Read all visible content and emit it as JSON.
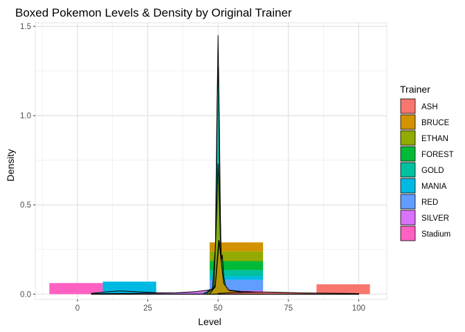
{
  "chart_data": {
    "type": "bar",
    "title": "Boxed Pokemon Levels & Density by Original Trainer",
    "xlabel": "Level",
    "ylabel": "Density",
    "xlim": [
      -15,
      110
    ],
    "ylim": [
      -0.03,
      1.52
    ],
    "x_ticks": [
      0,
      25,
      50,
      75,
      100
    ],
    "x_tick_labels": [
      "0",
      "25",
      "50",
      "75",
      "100"
    ],
    "y_ticks": [
      0.0,
      0.5,
      1.0,
      1.5
    ],
    "y_tick_labels": [
      "0.0",
      "0.5",
      "1.0",
      "1.5"
    ],
    "grid": true,
    "legend": {
      "title": "Trainer",
      "placement": "right",
      "entries": [
        {
          "name": "ASH",
          "color": "#F8766D"
        },
        {
          "name": "BRUCE",
          "color": "#D39200"
        },
        {
          "name": "ETHAN",
          "color": "#93AA00"
        },
        {
          "name": "FOREST",
          "color": "#00BA38"
        },
        {
          "name": "GOLD",
          "color": "#00C19F"
        },
        {
          "name": "MANIA",
          "color": "#00B9E3"
        },
        {
          "name": "RED",
          "color": "#619CFF"
        },
        {
          "name": "SILVER",
          "color": "#DB72FB"
        },
        {
          "name": "Stadium",
          "color": "#FF61C3"
        }
      ]
    },
    "histogram_bars": [
      {
        "trainer": "Stadium",
        "x_start": -10,
        "x_end": 9,
        "y_start": 0.0,
        "y_end": 0.062
      },
      {
        "trainer": "MANIA",
        "x_start": 9,
        "x_end": 28,
        "y_start": 0.0,
        "y_end": 0.07
      },
      {
        "trainer": "SILVER",
        "x_start": 47,
        "x_end": 66,
        "y_start": 0.0,
        "y_end": 0.02
      },
      {
        "trainer": "RED",
        "x_start": 47,
        "x_end": 66,
        "y_start": 0.02,
        "y_end": 0.08
      },
      {
        "trainer": "MANIA",
        "x_start": 47,
        "x_end": 66,
        "y_start": 0.08,
        "y_end": 0.1
      },
      {
        "trainer": "GOLD",
        "x_start": 47,
        "x_end": 66,
        "y_start": 0.1,
        "y_end": 0.135
      },
      {
        "trainer": "FOREST",
        "x_start": 47,
        "x_end": 66,
        "y_start": 0.135,
        "y_end": 0.185
      },
      {
        "trainer": "ETHAN",
        "x_start": 47,
        "x_end": 66,
        "y_start": 0.185,
        "y_end": 0.24
      },
      {
        "trainer": "BRUCE",
        "x_start": 47,
        "x_end": 66,
        "y_start": 0.24,
        "y_end": 0.29
      },
      {
        "trainer": "ASH",
        "x_start": 85,
        "x_end": 104,
        "y_start": 0.0,
        "y_end": 0.055
      }
    ],
    "density_curves": [
      {
        "trainer": "Stadium",
        "points": [
          [
            5,
            0.004
          ],
          [
            15,
            0.006
          ],
          [
            25,
            0.004
          ],
          [
            35,
            0.003
          ],
          [
            45,
            0.003
          ],
          [
            55,
            0.003
          ],
          [
            70,
            0.003
          ],
          [
            85,
            0.003
          ],
          [
            100,
            0.003
          ]
        ]
      },
      {
        "trainer": "MANIA",
        "points": [
          [
            5,
            0.005
          ],
          [
            10,
            0.012
          ],
          [
            15,
            0.018
          ],
          [
            20,
            0.014
          ],
          [
            28,
            0.008
          ],
          [
            40,
            0.006
          ],
          [
            48,
            0.01
          ],
          [
            50,
            0.02
          ],
          [
            52,
            0.01
          ],
          [
            60,
            0.004
          ],
          [
            75,
            0.003
          ],
          [
            100,
            0.002
          ]
        ]
      },
      {
        "trainer": "SILVER",
        "points": [
          [
            5,
            0.002
          ],
          [
            20,
            0.004
          ],
          [
            35,
            0.008
          ],
          [
            42,
            0.014
          ],
          [
            46,
            0.022
          ],
          [
            49,
            0.03
          ],
          [
            50,
            0.035
          ],
          [
            51,
            0.03
          ],
          [
            54,
            0.022
          ],
          [
            58,
            0.016
          ],
          [
            63,
            0.012
          ],
          [
            66,
            0.01
          ],
          [
            70,
            0.008
          ],
          [
            80,
            0.006
          ],
          [
            90,
            0.004
          ],
          [
            100,
            0.002
          ]
        ]
      },
      {
        "trainer": "RED",
        "points": [
          [
            45,
            0.004
          ],
          [
            48,
            0.02
          ],
          [
            49,
            0.2
          ],
          [
            49.5,
            0.9
          ],
          [
            50,
            1.45
          ],
          [
            50.5,
            0.9
          ],
          [
            51,
            0.2
          ],
          [
            52,
            0.02
          ],
          [
            55,
            0.004
          ]
        ]
      },
      {
        "trainer": "GOLD",
        "points": [
          [
            45,
            0.004
          ],
          [
            48,
            0.03
          ],
          [
            49.2,
            0.3
          ],
          [
            49.7,
            1.1
          ],
          [
            50.1,
            1.27
          ],
          [
            50.6,
            0.6
          ],
          [
            51.2,
            0.15
          ],
          [
            52.5,
            0.02
          ],
          [
            56,
            0.004
          ]
        ]
      },
      {
        "trainer": "ETHAN",
        "points": [
          [
            46,
            0.003
          ],
          [
            48.5,
            0.04
          ],
          [
            49.6,
            0.5
          ],
          [
            50,
            0.73
          ],
          [
            50.5,
            0.5
          ],
          [
            51.2,
            0.1
          ],
          [
            53,
            0.01
          ],
          [
            58,
            0.003
          ]
        ]
      },
      {
        "trainer": "FOREST",
        "points": [
          [
            47,
            0.003
          ],
          [
            49,
            0.05
          ],
          [
            50.2,
            0.3
          ],
          [
            51,
            0.18
          ],
          [
            51.5,
            0.22
          ],
          [
            52,
            0.1
          ],
          [
            53,
            0.02
          ],
          [
            56,
            0.004
          ]
        ]
      },
      {
        "trainer": "BRUCE",
        "points": [
          [
            47,
            0.003
          ],
          [
            49,
            0.04
          ],
          [
            50.4,
            0.3
          ],
          [
            51,
            0.2
          ],
          [
            52,
            0.06
          ],
          [
            54,
            0.02
          ],
          [
            60,
            0.008
          ],
          [
            66,
            0.004
          ]
        ]
      },
      {
        "trainer": "ASH",
        "points": [
          [
            50,
            0.004
          ],
          [
            55,
            0.008
          ],
          [
            60,
            0.01
          ],
          [
            66,
            0.012
          ],
          [
            72,
            0.01
          ],
          [
            80,
            0.007
          ],
          [
            90,
            0.005
          ],
          [
            100,
            0.003
          ]
        ]
      }
    ]
  }
}
